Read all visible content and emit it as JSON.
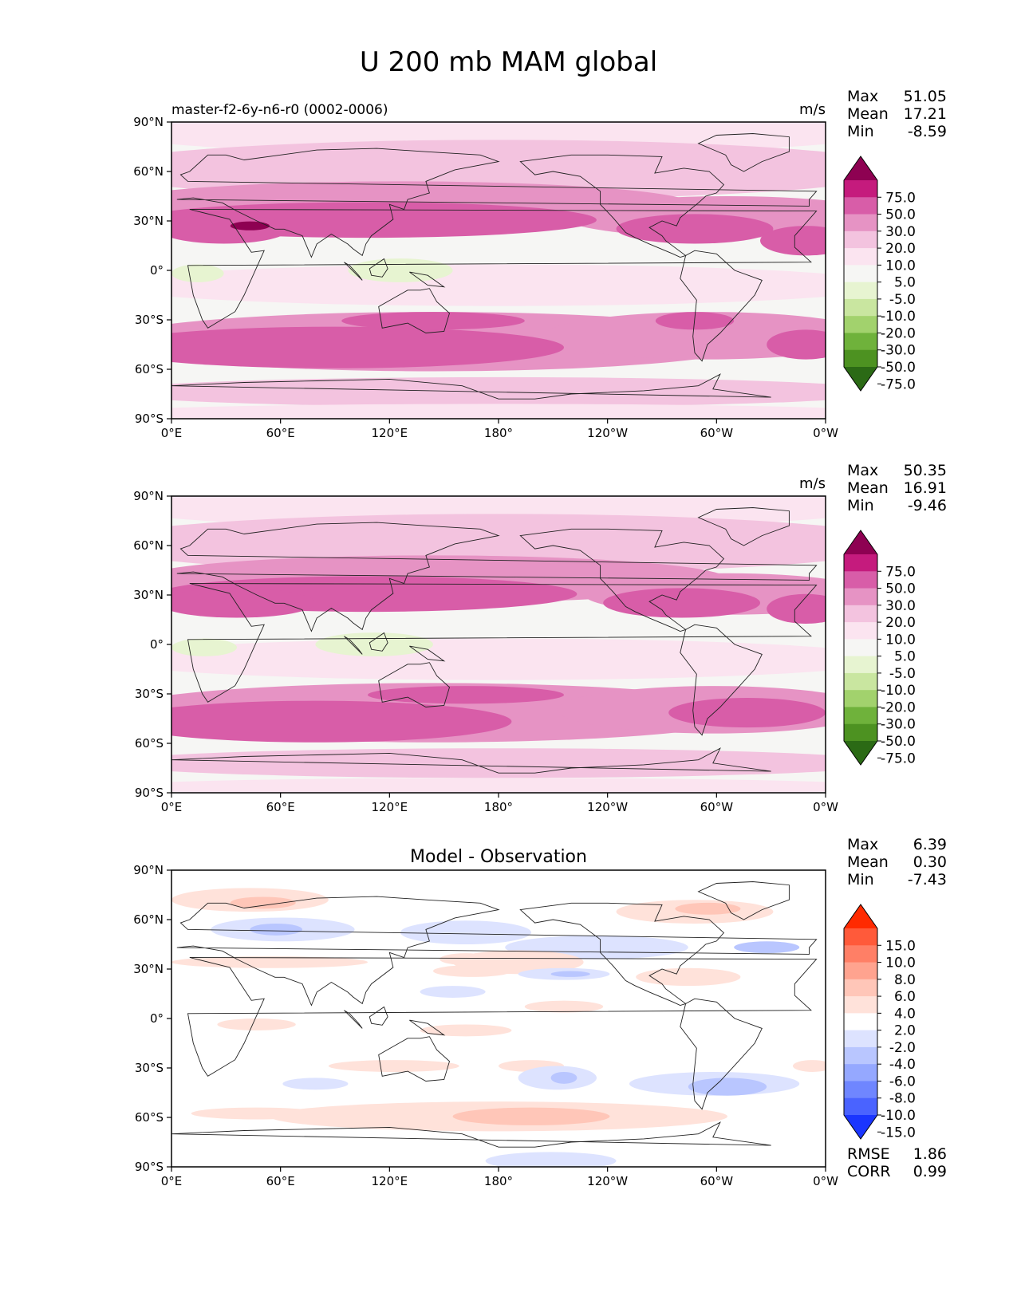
{
  "figure": {
    "title": "U 200 mb MAM global"
  },
  "colors": {
    "land_line": "#222222",
    "frame": "#000000",
    "fill_neutral": "#f6f6f4"
  },
  "panels": [
    {
      "key": "model",
      "header_left": "master-f2-6y-n6-r0 (0002-0006)",
      "header_center": "",
      "units": "m/s",
      "stats": {
        "max_label": "Max",
        "max": "51.05",
        "mean_label": "Mean",
        "mean": "17.21",
        "min_label": "Min",
        "min": "-8.59"
      },
      "colorbar": {
        "labels": [
          "75.0",
          "50.0",
          "30.0",
          "20.0",
          "10.0",
          "5.0",
          "-5.0",
          "-10.0",
          "-20.0",
          "-30.0",
          "-50.0",
          "-75.0"
        ],
        "colors": [
          "#8e0152",
          "#c51b7d",
          "#d85da8",
          "#e693c4",
          "#f3c3df",
          "#fbe4f0",
          "#f6f6f4",
          "#e7f4d1",
          "#c9e6a0",
          "#a2d26d",
          "#6fb23b",
          "#4d9221",
          "#2b6a15"
        ]
      },
      "extra_stats": []
    },
    {
      "key": "observation",
      "header_left": "",
      "header_center": "",
      "units": "m/s",
      "stats": {
        "max_label": "Max",
        "max": "50.35",
        "mean_label": "Mean",
        "mean": "16.91",
        "min_label": "Min",
        "min": "-9.46"
      },
      "colorbar": {
        "labels": [
          "75.0",
          "50.0",
          "30.0",
          "20.0",
          "10.0",
          "5.0",
          "-5.0",
          "-10.0",
          "-20.0",
          "-30.0",
          "-50.0",
          "-75.0"
        ],
        "colors": [
          "#8e0152",
          "#c51b7d",
          "#d85da8",
          "#e693c4",
          "#f3c3df",
          "#fbe4f0",
          "#f6f6f4",
          "#e7f4d1",
          "#c9e6a0",
          "#a2d26d",
          "#6fb23b",
          "#4d9221",
          "#2b6a15"
        ]
      },
      "extra_stats": []
    },
    {
      "key": "difference",
      "header_left": "",
      "header_center": "Model - Observation",
      "units": "",
      "stats": {
        "max_label": "Max",
        "max": "6.39",
        "mean_label": "Mean",
        "mean": "0.30",
        "min_label": "Min",
        "min": "-7.43"
      },
      "colorbar": {
        "labels": [
          "15.0",
          "10.0",
          "8.0",
          "6.0",
          "4.0",
          "2.0",
          "-2.0",
          "-4.0",
          "-6.0",
          "-8.0",
          "-10.0",
          "-15.0"
        ],
        "colors": [
          "#ff2a00",
          "#ff5a3a",
          "#ff7f66",
          "#ffa38f",
          "#ffc6b8",
          "#ffe2da",
          "#ffffff",
          "#dde3ff",
          "#b9c6ff",
          "#95a8ff",
          "#6f86ff",
          "#4a63ff",
          "#1a35ff"
        ]
      },
      "extra_stats": [
        {
          "label": "RMSE",
          "value": "1.86"
        },
        {
          "label": "CORR",
          "value": "0.99"
        }
      ]
    }
  ],
  "axes": {
    "x_ticks": [
      "0°E",
      "60°E",
      "120°E",
      "180°",
      "120°W",
      "60°W",
      "0°W"
    ],
    "y_ticks": [
      "90°N",
      "60°N",
      "30°N",
      "0°",
      "30°S",
      "60°S",
      "90°S"
    ]
  }
}
